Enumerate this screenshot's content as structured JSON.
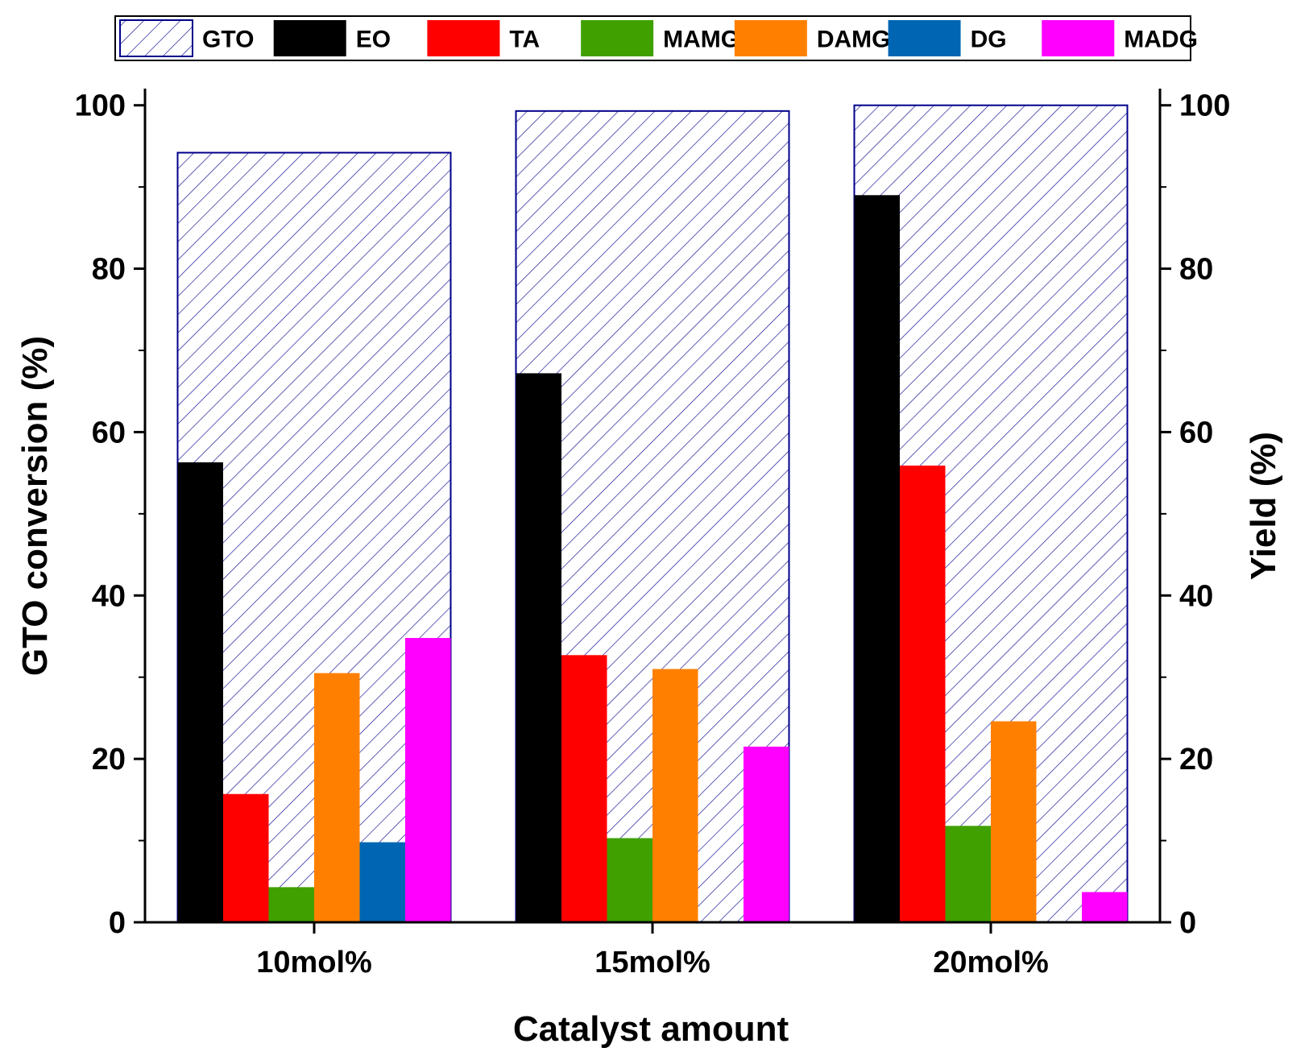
{
  "chart_data": {
    "type": "bar",
    "title": "",
    "xlabel": "Catalyst amount",
    "ylabel_left": "GTO conversion (%)",
    "ylabel_right": "Yield (%)",
    "ylim": [
      0,
      105
    ],
    "y_ticks": [
      0,
      20,
      40,
      60,
      80,
      100
    ],
    "categories": [
      "10mol%",
      "15mol%",
      "20mol%"
    ],
    "background_series": {
      "name": "GTO",
      "axis": "left",
      "style": "hatched",
      "color": "#00008B",
      "values": [
        94.2,
        99.3,
        100
      ]
    },
    "series": [
      {
        "name": "EO",
        "color": "#000000",
        "values": [
          56.3,
          67.2,
          89.0
        ]
      },
      {
        "name": "TA",
        "color": "#FF0000",
        "values": [
          15.7,
          32.7,
          55.9
        ]
      },
      {
        "name": "MAMG",
        "color": "#3FA000",
        "values": [
          4.3,
          10.3,
          11.8
        ]
      },
      {
        "name": "DAMG",
        "color": "#FF8000",
        "values": [
          30.5,
          31.0,
          24.6
        ]
      },
      {
        "name": "DG",
        "color": "#0066B3",
        "values": [
          9.8,
          0,
          0
        ]
      },
      {
        "name": "MADG",
        "color": "#FF00FF",
        "values": [
          34.8,
          21.5,
          3.7
        ]
      }
    ],
    "legend": {
      "placement": "top",
      "entries": [
        "GTO",
        "EO",
        "TA",
        "MAMG",
        "DAMG",
        "DG",
        "MADG"
      ]
    }
  }
}
